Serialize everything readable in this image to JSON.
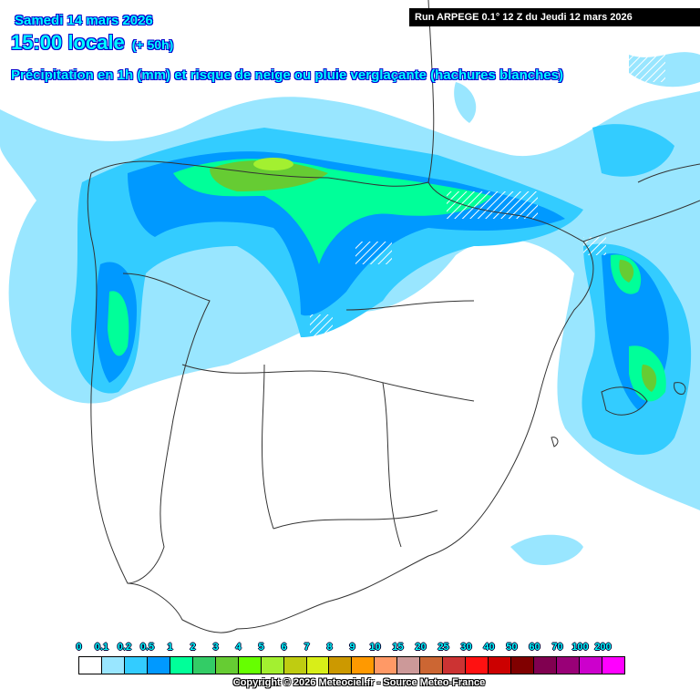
{
  "header": {
    "date": "Samedi 14 mars 2026",
    "time": "15:00 locale",
    "lead": "(+ 50h)",
    "subtitle": "Précipitation en 1h (mm) et risque de neige ou pluie verglaçante (hachures blanches)",
    "run": "Run ARPEGE 0.1° 12 Z du Jeudi 12 mars 2026"
  },
  "legend": {
    "labels": [
      "0",
      "0.1",
      "0.2",
      "0.5",
      "1",
      "2",
      "3",
      "4",
      "5",
      "6",
      "7",
      "8",
      "9",
      "10",
      "15",
      "20",
      "25",
      "30",
      "40",
      "50",
      "60",
      "70",
      "100",
      "200"
    ],
    "colors": [
      "#ffffff",
      "#99e6ff",
      "#33ccff",
      "#0099ff",
      "#00ff99",
      "#33cc66",
      "#66cc33",
      "#66ff00",
      "#a3f030",
      "#bfcc11",
      "#d8ee18",
      "#cc9900",
      "#ff9900",
      "#ff9966",
      "#cc9999",
      "#cc6633",
      "#cc3333",
      "#ff1111",
      "#cc0000",
      "#800000",
      "#800050",
      "#990077",
      "#cc00cc",
      "#ff00ff"
    ]
  },
  "copyright": "Copyright © 2026 Meteociel.fr - Source Meteo-France"
}
